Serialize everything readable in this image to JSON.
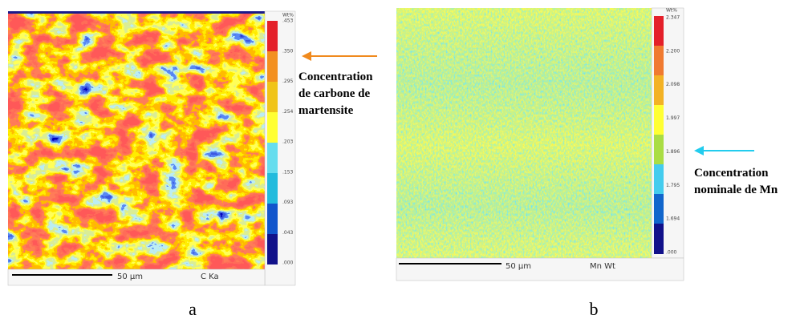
{
  "panels": [
    {
      "label": "a",
      "unit": "Wt%",
      "colorbar_ticks": [
        ".453",
        ".350",
        ".295",
        ".254",
        ".203",
        ".153",
        ".093",
        ".043",
        ".000"
      ],
      "scale_bar": "50 µm",
      "map_label": "C Ka",
      "annotation": [
        "Concentration",
        "de carbone de",
        "martensite"
      ]
    },
    {
      "label": "b",
      "unit": "Wt%",
      "colorbar_ticks": [
        "2.347",
        "2.200",
        "2.098",
        "1.997",
        "1.896",
        "1.795",
        "1.694",
        ".000"
      ],
      "scale_bar": "50 µm",
      "map_label": "Mn Wt",
      "annotation": [
        "Concentration",
        "nominale de Mn"
      ]
    }
  ]
}
